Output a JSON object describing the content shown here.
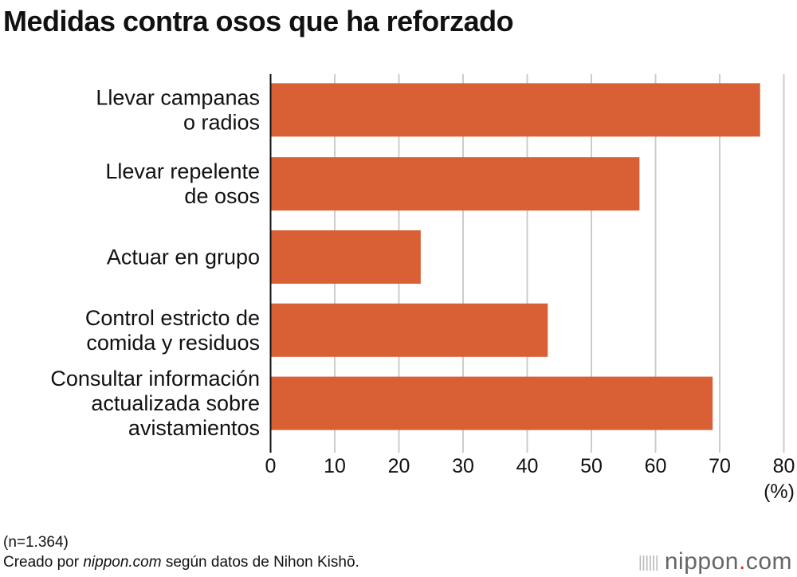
{
  "chart_data": {
    "type": "bar",
    "orientation": "horizontal",
    "title": "Medidas contra osos que ha reforzado",
    "categories": [
      [
        "Llevar campanas",
        "o radios"
      ],
      [
        "Llevar repelente",
        "de osos"
      ],
      [
        "Actuar en grupo"
      ],
      [
        "Control estricto de",
        "comida y residuos"
      ],
      [
        "Consultar información",
        "actualizada sobre",
        "avistamientos"
      ]
    ],
    "values": [
      76.3,
      57.5,
      23.4,
      43.2,
      68.9
    ],
    "xlim": [
      0,
      80
    ],
    "xticks": [
      "0",
      "10",
      "20",
      "30",
      "40",
      "50",
      "60",
      "70",
      "80"
    ],
    "unit_label": "(%)",
    "grid": "vertical",
    "bar_color": "#d95f34"
  },
  "footer": {
    "sample": "(n=1.364)",
    "source_prefix": "Creado por ",
    "source_site": "nippon.com",
    "source_suffix": " según datos de Nihon Kishō."
  },
  "logo": {
    "name": "nippon",
    "dot": ".",
    "tld": "com"
  }
}
